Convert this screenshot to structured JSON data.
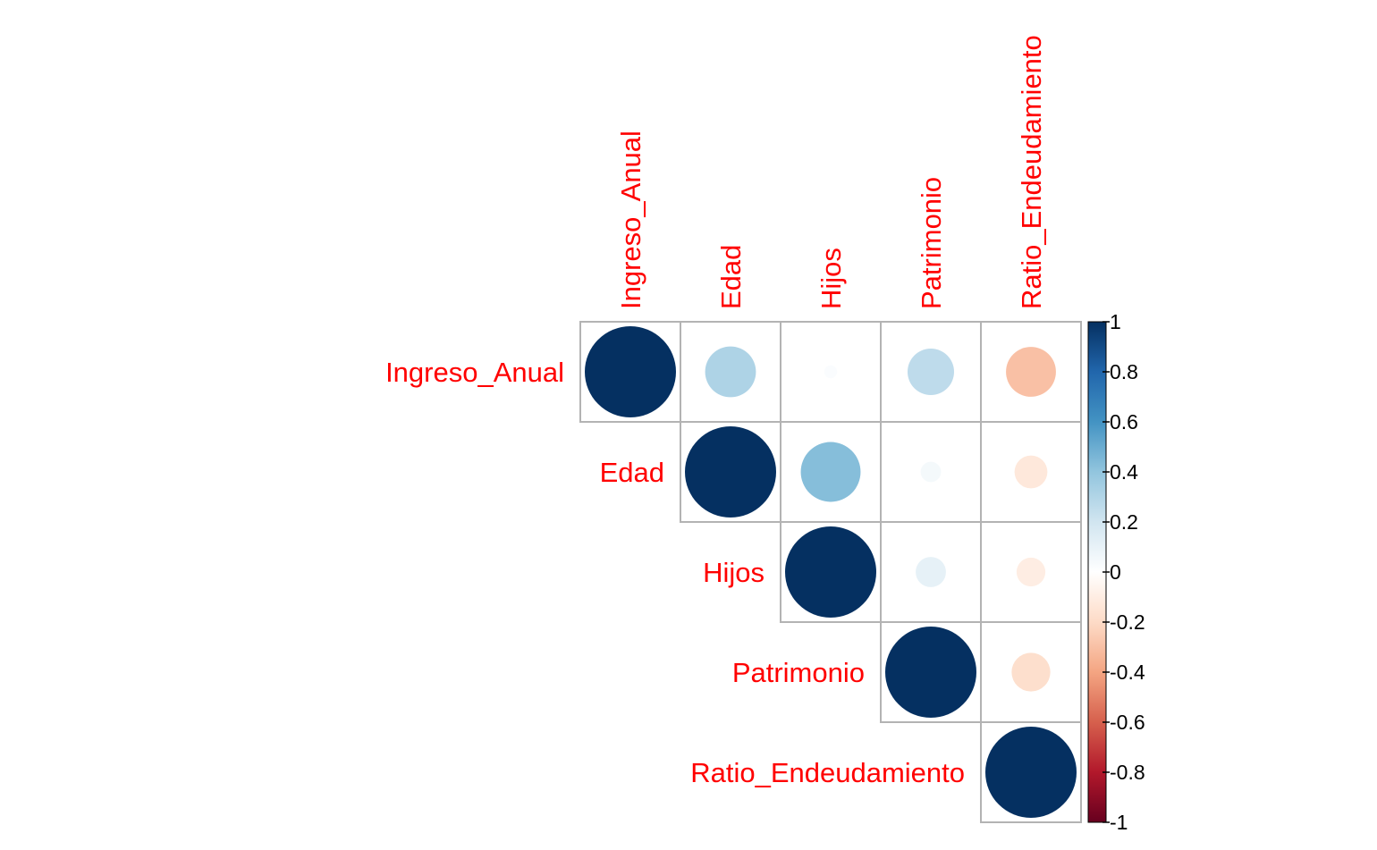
{
  "chart_data": {
    "type": "heatmap",
    "subtype": "correlation-circles-upper-triangle",
    "variables": [
      "Ingreso_Anual",
      "Edad",
      "Hijos",
      "Patrimonio",
      "Ratio_Endeudamiento"
    ],
    "matrix": [
      [
        1.0,
        0.31,
        0.02,
        0.26,
        -0.3
      ],
      [
        0.31,
        1.0,
        0.43,
        0.05,
        -0.13
      ],
      [
        0.02,
        0.43,
        1.0,
        0.11,
        -0.1
      ],
      [
        0.26,
        0.05,
        0.11,
        1.0,
        -0.18
      ],
      [
        -0.3,
        -0.13,
        -0.1,
        -0.18,
        1.0
      ]
    ],
    "legend": {
      "position": "right",
      "range": [
        -1,
        1
      ],
      "ticks": [
        "1",
        "0.8",
        "0.6",
        "0.4",
        "0.2",
        "0",
        "-0.2",
        "-0.4",
        "-0.6",
        "-0.8",
        "-1"
      ]
    },
    "colors": {
      "label": "#ff0000",
      "grid": "#b3b3b3",
      "negative_extreme": "#67001f",
      "positive_extreme": "#053061",
      "zero": "#ffffff"
    }
  }
}
